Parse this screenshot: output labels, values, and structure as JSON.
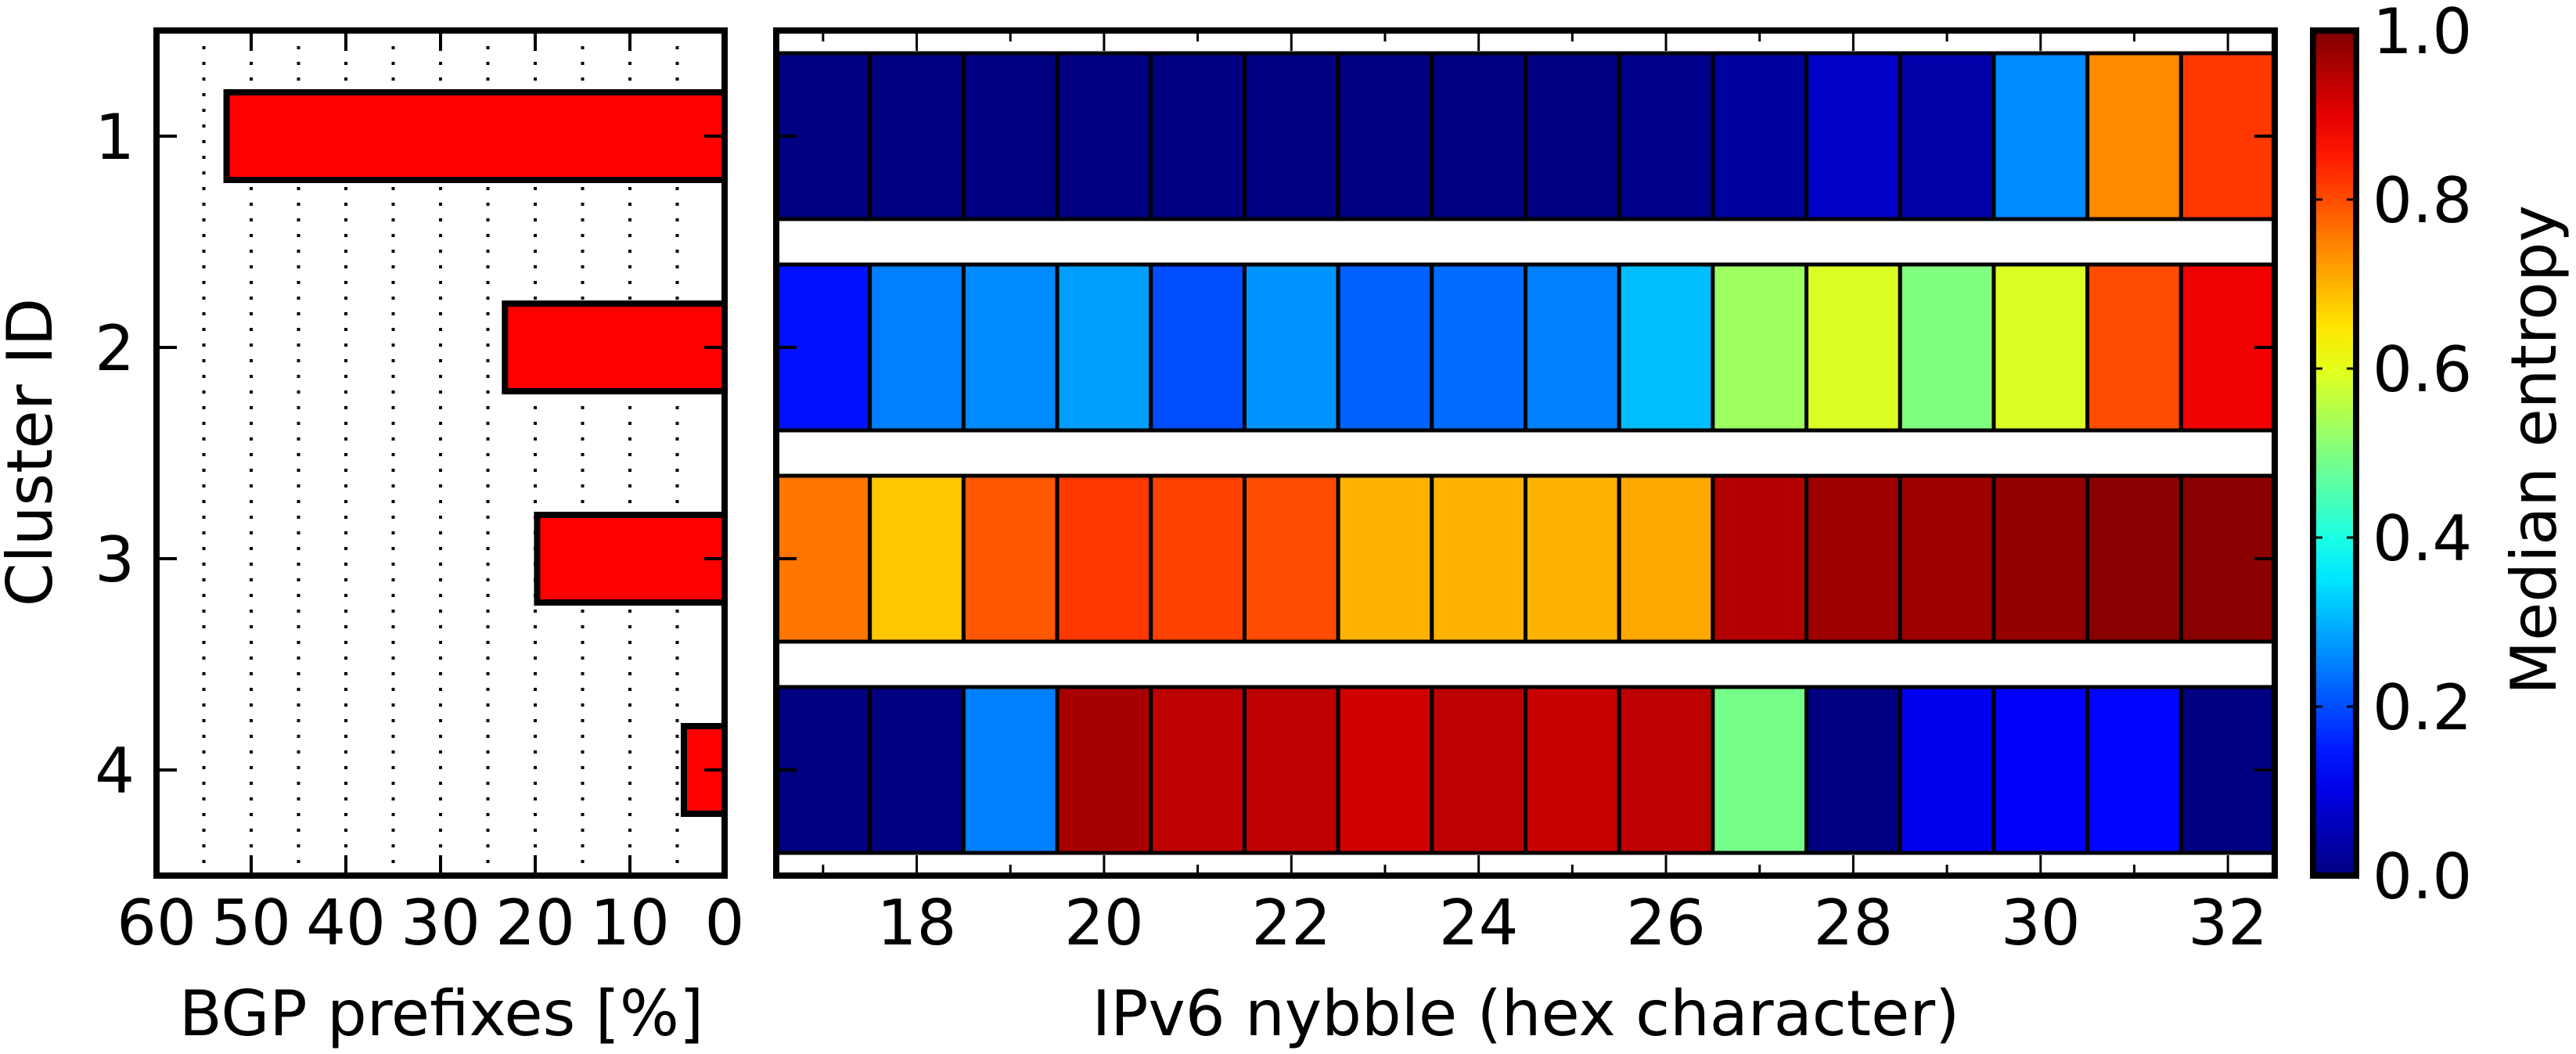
{
  "chart_data": [
    {
      "type": "bar",
      "orientation": "horizontal",
      "categories": [
        "1",
        "2",
        "3",
        "4"
      ],
      "values": [
        52.6,
        23.2,
        19.8,
        4.3
      ],
      "xlabel": "BGP prefixes [%]",
      "ylabel": "Cluster ID",
      "xlim": [
        60,
        0
      ],
      "xticks": [
        "60",
        "50",
        "40",
        "30",
        "20",
        "10",
        "0"
      ],
      "grid": "vertical dotted, every 5",
      "bar_color": "#ff0000"
    },
    {
      "type": "heatmap",
      "x": [
        17,
        18,
        19,
        20,
        21,
        22,
        23,
        24,
        25,
        26,
        27,
        28,
        29,
        30,
        31,
        32
      ],
      "y": [
        "1",
        "2",
        "3",
        "4"
      ],
      "xlabel": "IPv6 nybble (hex character)",
      "xticks": [
        "18",
        "20",
        "22",
        "24",
        "26",
        "28",
        "30",
        "32"
      ],
      "xlim": [
        16.5,
        32.5
      ],
      "colormap": "jet",
      "values": [
        [
          0.0,
          0.0,
          0.0,
          0.0,
          0.0,
          0.0,
          0.0,
          0.0,
          0.0,
          0.01,
          0.03,
          0.07,
          0.04,
          0.26,
          0.74,
          0.82
        ],
        [
          0.14,
          0.25,
          0.26,
          0.28,
          0.2,
          0.27,
          0.22,
          0.23,
          0.25,
          0.31,
          0.53,
          0.59,
          0.5,
          0.59,
          0.8,
          0.89
        ],
        [
          0.76,
          0.68,
          0.79,
          0.82,
          0.81,
          0.8,
          0.7,
          0.7,
          0.7,
          0.71,
          0.95,
          0.97,
          0.97,
          0.98,
          0.99,
          0.99
        ],
        [
          0.0,
          0.0,
          0.25,
          0.96,
          0.94,
          0.94,
          0.92,
          0.94,
          0.93,
          0.94,
          0.49,
          0.0,
          0.11,
          0.12,
          0.13,
          0.0
        ]
      ],
      "colorbar": {
        "label": "Median entropy",
        "range": [
          0,
          1
        ],
        "ticks": [
          "0.0",
          "0.2",
          "0.4",
          "0.6",
          "0.8",
          "1.0"
        ]
      }
    }
  ]
}
